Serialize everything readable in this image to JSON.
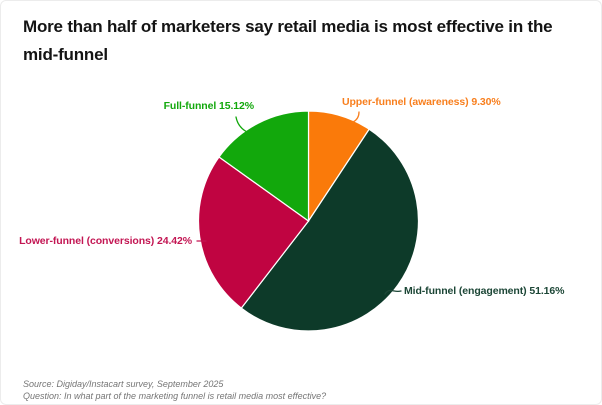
{
  "chart_data": {
    "type": "pie",
    "title": "More than half of marketers say retail media is most effective in the mid-funnel",
    "direction": "clockwise",
    "start_angle_deg": 0,
    "legend_position": "outside-labels",
    "slices": [
      {
        "label": "Upper-funnel (awareness)",
        "value": 9.3,
        "display": "Upper-funnel (awareness) 9.30%",
        "color": "#FA7A0A",
        "label_color": "#F87F1E"
      },
      {
        "label": "Mid-funnel (engagement)",
        "value": 51.16,
        "display": "Mid-funnel (engagement) 51.16%",
        "color": "#0D3A29",
        "label_color": "#1C4636"
      },
      {
        "label": "Lower-funnel (conversions)",
        "value": 24.42,
        "display": "Lower-funnel (conversions) 24.42%",
        "color": "#C00441",
        "label_color": "#C31653"
      },
      {
        "label": "Full-funnel",
        "value": 15.12,
        "display": "Full-funnel 15.12%",
        "color": "#12A80C",
        "label_color": "#12A80C"
      }
    ]
  },
  "footer": {
    "source": "Source: Digiday/Instacart survey, September 2025",
    "question": "Question: In what part of the marketing funnel is retail media most effective?"
  }
}
